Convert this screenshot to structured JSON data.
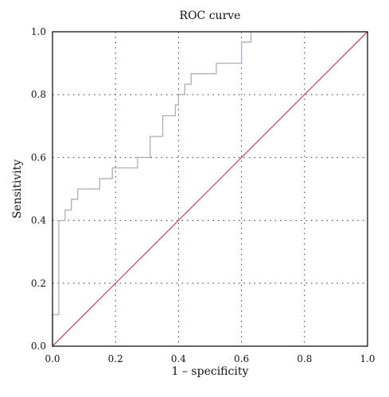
{
  "chart_data": {
    "type": "line",
    "title": "ROC curve",
    "xlabel": "1 – specificity",
    "ylabel": "Sensitivity",
    "xlim": [
      0.0,
      1.0
    ],
    "ylim": [
      0.0,
      1.0
    ],
    "x_ticks": [
      "0.0",
      "0.2",
      "0.4",
      "0.6",
      "0.8",
      "1.0"
    ],
    "y_ticks": [
      "0.0",
      "0.2",
      "0.4",
      "0.6",
      "0.8",
      "1.0"
    ],
    "grid": true,
    "grid_style": "dotted",
    "series": [
      {
        "color": "#a8aec4",
        "step": true,
        "x": [
          0.0,
          0.0,
          0.02,
          0.02,
          0.04,
          0.04,
          0.06,
          0.06,
          0.08,
          0.08,
          0.15,
          0.15,
          0.19,
          0.19,
          0.27,
          0.27,
          0.31,
          0.31,
          0.35,
          0.35,
          0.39,
          0.39,
          0.4,
          0.4,
          0.42,
          0.42,
          0.44,
          0.44,
          0.52,
          0.52,
          0.6,
          0.6,
          0.61,
          0.61,
          0.63,
          0.63,
          1.0
        ],
        "y": [
          0.0,
          0.1,
          0.1,
          0.4,
          0.4,
          0.433,
          0.433,
          0.467,
          0.467,
          0.5,
          0.5,
          0.533,
          0.533,
          0.567,
          0.567,
          0.6,
          0.6,
          0.667,
          0.667,
          0.733,
          0.733,
          0.767,
          0.767,
          0.8,
          0.8,
          0.833,
          0.833,
          0.867,
          0.867,
          0.9,
          0.9,
          0.967,
          0.967,
          0.967,
          0.967,
          1.0,
          1.0
        ]
      },
      {
        "color": "#c05060",
        "reference": true,
        "x": [
          0.0,
          1.0
        ],
        "y": [
          0.0,
          1.0
        ]
      }
    ]
  }
}
